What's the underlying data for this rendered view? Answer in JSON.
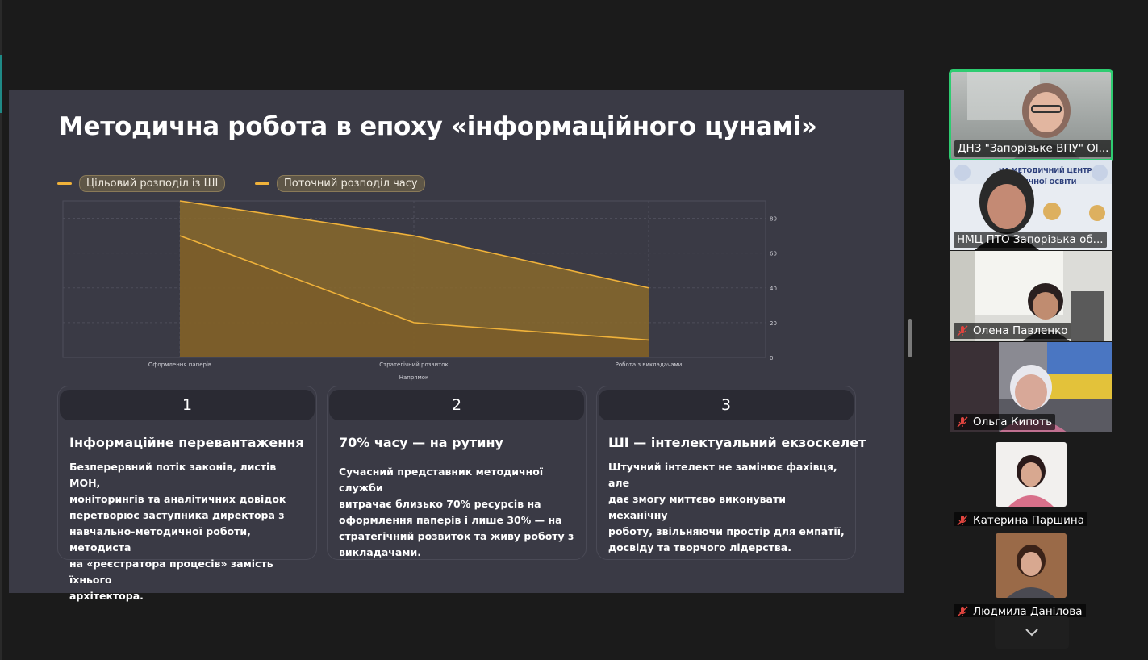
{
  "slide": {
    "title": "Методична робота в епоху «інформаційного цунамі»",
    "legend": [
      {
        "label": "Цільовий розподіл із ШІ",
        "color": "#f0b23a"
      },
      {
        "label": "Поточний розподіл часу",
        "color": "#f0b23a"
      }
    ],
    "cards": [
      {
        "number": "1",
        "title": "Інформаційне перевантаження",
        "body": [
          "Безперервний потік законів, листів МОН,",
          "моніторингів та аналітичних довідок",
          "перетворює заступника директора з",
          "навчально-методичної роботи, методиста",
          "на «реєстратора процесів» замість їхнього",
          "архітектора."
        ]
      },
      {
        "number": "2",
        "title": "70% часу — на рутину",
        "body": [
          "Сучасний представник методичної служби",
          "витрачає близько 70% ресурсів на",
          "оформлення паперів і лише 30% — на",
          "стратегічний розвиток та живу роботу з",
          "викладачами."
        ]
      },
      {
        "number": "3",
        "title": "ШІ — інтелектуальний екзоскелет",
        "body": [
          "Штучний інтелект не замінює фахівця, але",
          "дає змогу миттєво виконувати механічну",
          "роботу, звільняючи простір для емпатії,",
          "досвіду та творчого лідерства."
        ]
      }
    ]
  },
  "chart_data": {
    "type": "area",
    "categories": [
      "Оформлення паперів",
      "Стратегічний розвиток",
      "Робота з викладачами"
    ],
    "series": [
      {
        "name": "Поточний розподіл часу",
        "values": [
          90,
          70,
          40
        ]
      },
      {
        "name": "Цільовий розподіл із ШІ",
        "values": [
          70,
          20,
          10
        ]
      }
    ],
    "xlabel": "Напрямок",
    "ylabel": "",
    "ylim": [
      0,
      90
    ],
    "yticks": [
      0,
      20,
      40,
      60,
      80
    ],
    "y_axis_side": "right",
    "grid": true,
    "legend_position": "top-left",
    "line_color": "#f0b23a",
    "fill_color": "#8a6a2c"
  },
  "participants": [
    {
      "name": "ДНЗ \"Запорізьке ВПУ\" Ol...",
      "muted": false,
      "active_speaker": true
    },
    {
      "name": "НМЦ ПТО Запорізька об...",
      "muted": false,
      "active_speaker": false
    },
    {
      "name": "Олена Павленко",
      "muted": true,
      "active_speaker": false
    },
    {
      "name": "Ольга Кипоть",
      "muted": true,
      "active_speaker": false
    },
    {
      "name": "Катерина Паршина",
      "muted": true,
      "active_speaker": false
    },
    {
      "name": "Людмила Данілова",
      "muted": true,
      "active_speaker": false
    }
  ],
  "icons": {
    "mic_muted": "mic-off-icon",
    "expand": "chevron-down-icon"
  },
  "colors": {
    "slide_bg": "#3a3a45",
    "accent": "#f0b23a",
    "active_border": "#2ecc71",
    "muted_icon": "#e0453f"
  }
}
